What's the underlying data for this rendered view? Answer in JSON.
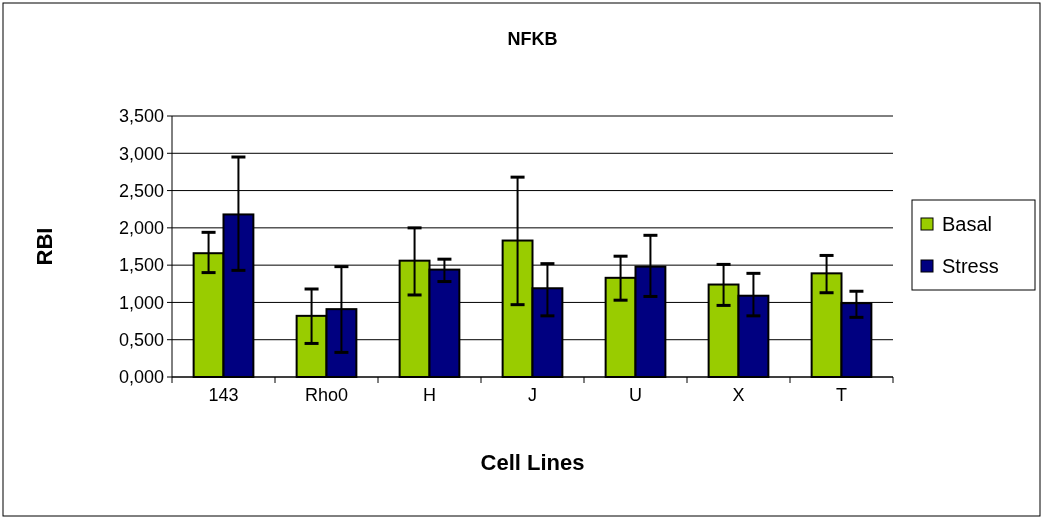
{
  "chart_data": {
    "type": "bar",
    "title": "NFKB",
    "xlabel": "Cell Lines",
    "ylabel": "RBI",
    "categories": [
      "143",
      "Rho0",
      "H",
      "J",
      "U",
      "X",
      "T"
    ],
    "series": [
      {
        "name": "Basal",
        "color": "#99cc00",
        "values": [
          1.66,
          0.82,
          1.56,
          1.83,
          1.33,
          1.24,
          1.39
        ],
        "errors": [
          [
            1.4,
            1.94
          ],
          [
            0.45,
            1.18
          ],
          [
            1.1,
            2.0
          ],
          [
            0.97,
            2.68
          ],
          [
            1.03,
            1.62
          ],
          [
            0.96,
            1.51
          ],
          [
            1.13,
            1.63
          ]
        ]
      },
      {
        "name": "Stress",
        "color": "#000080",
        "values": [
          2.18,
          0.91,
          1.44,
          1.19,
          1.48,
          1.09,
          0.99
        ],
        "errors": [
          [
            1.43,
            2.95
          ],
          [
            0.33,
            1.48
          ],
          [
            1.28,
            1.58
          ],
          [
            0.82,
            1.52
          ],
          [
            1.08,
            1.9
          ],
          [
            0.82,
            1.39
          ],
          [
            0.8,
            1.15
          ]
        ]
      }
    ],
    "ylim": [
      0,
      3.5
    ],
    "yticks": [
      {
        "value": 0,
        "label": "0,000"
      },
      {
        "value": 0.5,
        "label": "0,500"
      },
      {
        "value": 1,
        "label": "1,000"
      },
      {
        "value": 1.5,
        "label": "1,500"
      },
      {
        "value": 2,
        "label": "2,000"
      },
      {
        "value": 2.5,
        "label": "2,500"
      },
      {
        "value": 3,
        "label": "3,000"
      },
      {
        "value": 3.5,
        "label": "3,500"
      }
    ],
    "grid": "y",
    "legend": "right"
  }
}
